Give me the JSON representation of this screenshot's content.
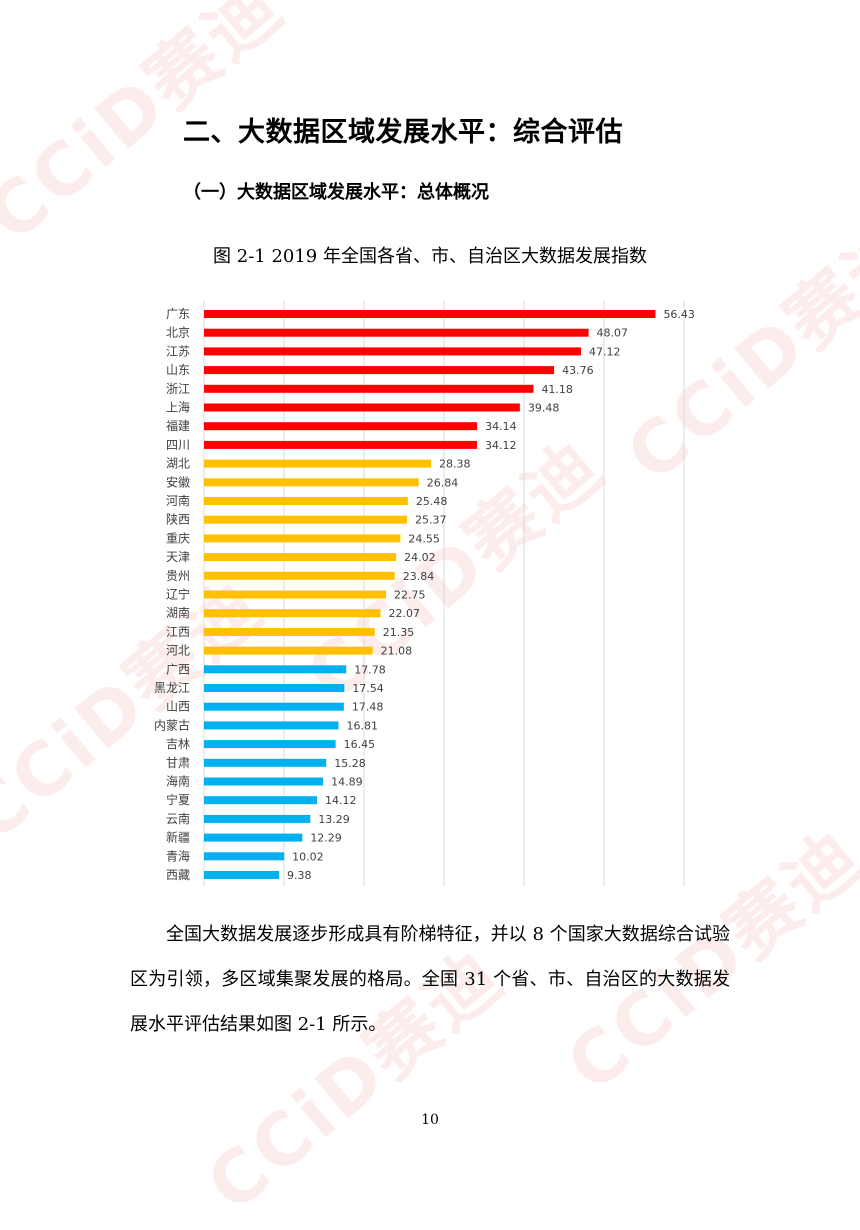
{
  "watermark_text": "CCiD赛迪",
  "heading": "二、大数据区域发展水平：综合评估",
  "subheading": "（一）大数据区域发展水平：总体概况",
  "caption": "图 2-1 2019 年全国各省、市、自治区大数据发展指数",
  "chart_data": {
    "type": "bar",
    "orientation": "horizontal",
    "title": "",
    "xlabel": "",
    "ylabel": "",
    "xlim": [
      0,
      60
    ],
    "grid": true,
    "categories": [
      "广东",
      "北京",
      "江苏",
      "山东",
      "浙江",
      "上海",
      "福建",
      "四川",
      "湖北",
      "安徽",
      "河南",
      "陕西",
      "重庆",
      "天津",
      "贵州",
      "辽宁",
      "湖南",
      "江西",
      "河北",
      "广西",
      "黑龙江",
      "山西",
      "内蒙古",
      "吉林",
      "甘肃",
      "海南",
      "宁夏",
      "云南",
      "新疆",
      "青海",
      "西藏"
    ],
    "values": [
      56.43,
      48.07,
      47.12,
      43.76,
      41.18,
      39.48,
      34.14,
      34.12,
      28.38,
      26.84,
      25.48,
      25.37,
      24.55,
      24.02,
      23.84,
      22.75,
      22.07,
      21.35,
      21.08,
      17.78,
      17.54,
      17.48,
      16.81,
      16.45,
      15.28,
      14.89,
      14.12,
      13.29,
      12.29,
      10.02,
      9.38
    ],
    "value_labels": [
      "56.43",
      "48.07",
      "47.12",
      "43.76",
      "41.18",
      "39.48",
      "34.14",
      "34.12",
      "28.38",
      "26.84",
      "25.48",
      "25.37",
      "24.55",
      "24.02",
      "23.84",
      "22.75",
      "22.07",
      "21.35",
      "21.08",
      "17.78",
      "17.54",
      "17.48",
      "16.81",
      "16.45",
      "15.28",
      "14.89",
      "14.12",
      "13.29",
      "12.29",
      "10.02",
      "9.38"
    ],
    "tiers": [
      "top",
      "top",
      "top",
      "top",
      "top",
      "top",
      "top",
      "top",
      "mid",
      "mid",
      "mid",
      "mid",
      "mid",
      "mid",
      "mid",
      "mid",
      "mid",
      "mid",
      "mid",
      "low",
      "low",
      "low",
      "low",
      "low",
      "low",
      "low",
      "low",
      "low",
      "low",
      "low",
      "low"
    ],
    "colors": {
      "top": "#ff0000",
      "mid": "#ffc000",
      "low": "#00b0f0",
      "grid": "#d9d9d9",
      "text": "#404040"
    }
  },
  "paragraph": "全国大数据发展逐步形成具有阶梯特征，并以 8 个国家大数据综合试验区为引领，多区域集聚发展的格局。全国 31 个省、市、自治区的大数据发展水平评估结果如图 2-1 所示。",
  "page_number": "10"
}
